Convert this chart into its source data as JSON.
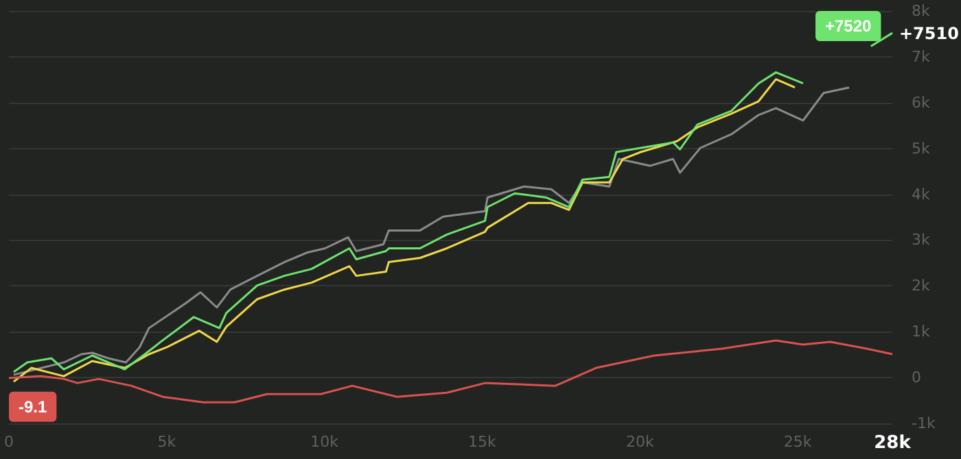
{
  "chart_data": {
    "type": "line",
    "xlim": [
      0,
      28000
    ],
    "ylim": [
      -1000,
      8000
    ],
    "xticks": [
      {
        "value": 0,
        "label": "0"
      },
      {
        "value": 5000,
        "label": "5k"
      },
      {
        "value": 10000,
        "label": "10k"
      },
      {
        "value": 15000,
        "label": "15k"
      },
      {
        "value": 20000,
        "label": "20k"
      },
      {
        "value": 25000,
        "label": "25k"
      },
      {
        "value": 28000,
        "label": "28k"
      }
    ],
    "yticks": [
      {
        "value": -1000,
        "label": "-1k"
      },
      {
        "value": 0,
        "label": "0"
      },
      {
        "value": 1000,
        "label": "1k"
      },
      {
        "value": 2000,
        "label": "2k"
      },
      {
        "value": 3000,
        "label": "3k"
      },
      {
        "value": 4000,
        "label": "4k"
      },
      {
        "value": 5000,
        "label": "5k"
      },
      {
        "value": 6000,
        "label": "6k"
      },
      {
        "value": 7000,
        "label": "7k"
      },
      {
        "value": 8000,
        "label": "8k"
      }
    ],
    "grid": "y",
    "series": [
      {
        "color": "#8a8a8a",
        "x": [
          150,
          1740,
          2300,
          2640,
          3150,
          3710,
          4140,
          4440,
          5600,
          6070,
          6590,
          7020,
          7870,
          8730,
          9460,
          10020,
          10750,
          11010,
          11870,
          12040,
          13030,
          13760,
          15090,
          15170,
          16330,
          17190,
          17750,
          18180,
          19030,
          19330,
          20320,
          21050,
          21270,
          21910,
          22900,
          23760,
          24310,
          25170,
          25820,
          26630
        ],
        "values": [
          60,
          330,
          510,
          540,
          420,
          330,
          660,
          1080,
          1620,
          1860,
          1530,
          1920,
          2220,
          2520,
          2730,
          2820,
          3060,
          2760,
          2910,
          3210,
          3210,
          3510,
          3630,
          3930,
          4170,
          4110,
          3810,
          4260,
          4170,
          4770,
          4620,
          4770,
          4470,
          5010,
          5310,
          5730,
          5880,
          5610,
          6210,
          6330
        ]
      },
      {
        "color": "#f0d848",
        "x": [
          150,
          710,
          1740,
          2640,
          3670,
          4440,
          5000,
          6030,
          6590,
          6890,
          7870,
          8730,
          9590,
          10790,
          11010,
          11950,
          12040,
          13030,
          13880,
          15090,
          15170,
          16460,
          17190,
          17750,
          18180,
          19030,
          19460,
          20020,
          21180,
          21820,
          22900,
          23760,
          24310,
          24910
        ],
        "values": [
          -90,
          210,
          30,
          360,
          210,
          510,
          660,
          1020,
          780,
          1110,
          1710,
          1920,
          2070,
          2430,
          2220,
          2310,
          2520,
          2610,
          2820,
          3180,
          3270,
          3810,
          3810,
          3660,
          4260,
          4260,
          4770,
          4920,
          5160,
          5460,
          5760,
          6030,
          6510,
          6330
        ]
      },
      {
        "color": "#6ee36e",
        "x": [
          150,
          580,
          1350,
          1740,
          2640,
          3670,
          4310,
          4870,
          5860,
          6670,
          6890,
          7870,
          8730,
          9590,
          10790,
          11010,
          11950,
          12040,
          13030,
          13880,
          15090,
          15170,
          16030,
          17020,
          17750,
          18180,
          19030,
          19250,
          20020,
          21050,
          21270,
          21820,
          22900,
          23760,
          24310,
          25170,
          25900,
          26630,
          27320,
          28000
        ],
        "values": [
          120,
          330,
          420,
          180,
          480,
          180,
          510,
          810,
          1320,
          1080,
          1410,
          2010,
          2220,
          2370,
          2820,
          2580,
          2760,
          2820,
          2820,
          3120,
          3420,
          3720,
          4020,
          3930,
          3720,
          4320,
          4380,
          4920,
          5010,
          5130,
          4980,
          5520,
          5820,
          6420,
          6660,
          6420,
          null,
          null,
          7230,
          7520
        ],
        "value_labels": [
          null,
          null,
          null,
          null,
          null,
          null,
          null,
          null,
          null,
          null,
          null,
          null,
          null,
          null,
          null,
          null,
          null,
          null,
          null,
          null,
          null,
          null,
          null,
          null,
          null,
          null,
          null,
          null,
          null,
          null,
          null,
          null,
          null,
          null,
          null,
          null,
          null,
          null,
          null,
          "+7520"
        ]
      },
      {
        "color": "#d9534f",
        "x": [
          0,
          1010,
          1740,
          2170,
          2850,
          3880,
          4870,
          6160,
          7150,
          8180,
          9890,
          10880,
          12300,
          13880,
          15090,
          15170,
          17320,
          18610,
          20450,
          22600,
          24310,
          25170,
          26030,
          27190,
          28000
        ],
        "values": [
          -9.1,
          30,
          -30,
          -120,
          -30,
          -180,
          -420,
          -540,
          -540,
          -360,
          -360,
          -180,
          -420,
          -330,
          -120,
          -120,
          -180,
          210,
          480,
          630,
          810,
          720,
          780,
          630,
          510
        ],
        "value_labels": [
          "-9.1",
          null,
          null,
          null,
          null,
          null,
          null,
          null,
          null,
          null,
          null,
          null,
          null,
          null,
          null,
          null,
          null,
          null,
          null,
          null,
          null,
          null,
          null,
          null,
          null
        ]
      }
    ],
    "annotations": [
      {
        "text": "+7510",
        "x": 28000,
        "y": 7510
      }
    ]
  }
}
